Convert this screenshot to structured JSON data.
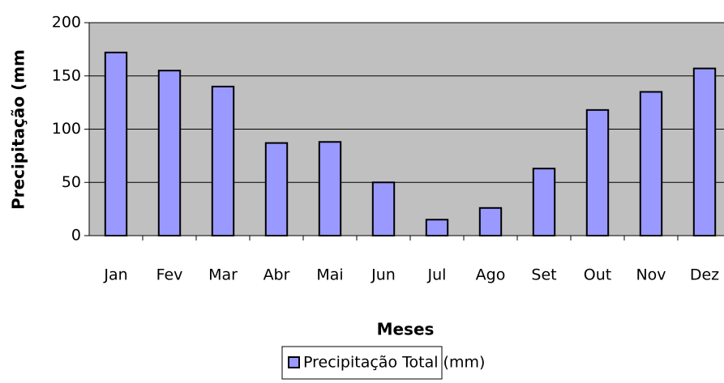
{
  "chart_data": {
    "type": "bar",
    "y_label": "Precipitação (mm",
    "x_label": "Meses",
    "categories": [
      "Jan",
      "Fev",
      "Mar",
      "Abr",
      "Mai",
      "Jun",
      "Jul",
      "Ago",
      "Set",
      "Out",
      "Nov",
      "Dez"
    ],
    "series": [
      {
        "name": "Precipitação Total (mm)",
        "color": "#9999ff",
        "values": [
          172,
          155,
          140,
          87,
          88,
          50,
          15,
          26,
          63,
          118,
          135,
          157
        ]
      }
    ],
    "ylim": [
      0,
      200
    ],
    "yticks": [
      0,
      50,
      100,
      150,
      200
    ],
    "grid": true,
    "legend": "bottom"
  }
}
